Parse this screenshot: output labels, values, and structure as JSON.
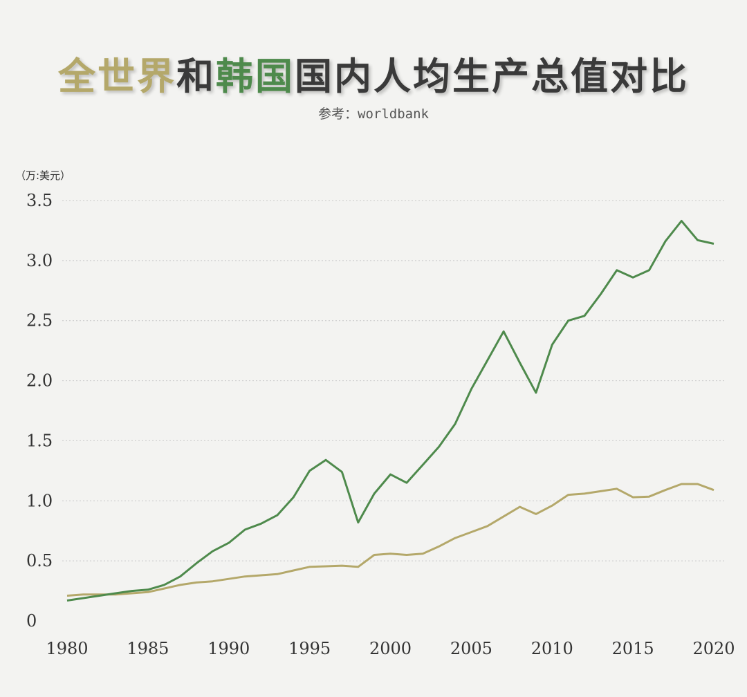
{
  "title": {
    "segments": [
      {
        "text": "全世界",
        "color": "#b4a86a"
      },
      {
        "text": "和",
        "color": "#3a3a3a"
      },
      {
        "text": "韩国",
        "color": "#4e8a4c"
      },
      {
        "text": "国内人均生产总值对比",
        "color": "#3a3a3a"
      }
    ]
  },
  "subtitle": "参考：worldbank",
  "unit": "（万:美元）",
  "chart_data": {
    "type": "line",
    "title": "全世界和韩国国内人均生产总值对比",
    "ylabel": "（万:美元）",
    "xlim": [
      1980,
      2020
    ],
    "ylim": [
      0,
      3.5
    ],
    "y_ticks": [
      0,
      0.5,
      1.0,
      1.5,
      2.0,
      2.5,
      3.0,
      3.5
    ],
    "y_tick_labels": [
      "0",
      "0.5",
      "1.0",
      "1.5",
      "2.0",
      "2.5",
      "3.0",
      "3.5"
    ],
    "x_ticks": [
      1980,
      1985,
      1990,
      1995,
      2000,
      2005,
      2010,
      2015,
      2020
    ],
    "x_tick_labels": [
      "1980",
      "1985",
      "1990",
      "1995",
      "2000",
      "2005",
      "2010",
      "2015",
      "2020"
    ],
    "grid": "horizontal dotted",
    "x": [
      1980,
      1981,
      1982,
      1983,
      1984,
      1985,
      1986,
      1987,
      1988,
      1989,
      1990,
      1991,
      1992,
      1993,
      1994,
      1995,
      1996,
      1997,
      1998,
      1999,
      2000,
      2001,
      2002,
      2003,
      2004,
      2005,
      2006,
      2007,
      2008,
      2009,
      2010,
      2011,
      2012,
      2013,
      2014,
      2015,
      2016,
      2017,
      2018,
      2019,
      2020
    ],
    "series": [
      {
        "color": "#b4a86a",
        "values": [
          0.21,
          0.22,
          0.22,
          0.22,
          0.23,
          0.24,
          0.27,
          0.3,
          0.32,
          0.33,
          0.35,
          0.37,
          0.38,
          0.39,
          0.42,
          0.45,
          0.455,
          0.46,
          0.45,
          0.55,
          0.56,
          0.55,
          0.56,
          0.62,
          0.69,
          0.74,
          0.79,
          0.87,
          0.95,
          0.89,
          0.96,
          1.05,
          1.06,
          1.08,
          1.1,
          1.03,
          1.035,
          1.09,
          1.14,
          1.14,
          1.09
        ]
      },
      {
        "color": "#4e8a4c",
        "values": [
          0.17,
          0.19,
          0.21,
          0.23,
          0.25,
          0.26,
          0.3,
          0.37,
          0.48,
          0.58,
          0.65,
          0.76,
          0.81,
          0.88,
          1.03,
          1.25,
          1.34,
          1.24,
          0.82,
          1.06,
          1.22,
          1.15,
          1.3,
          1.45,
          1.64,
          1.93,
          2.17,
          2.41,
          2.15,
          1.9,
          2.3,
          2.5,
          2.54,
          2.72,
          2.92,
          2.86,
          2.92,
          3.16,
          3.33,
          3.17,
          3.14
        ]
      }
    ]
  }
}
